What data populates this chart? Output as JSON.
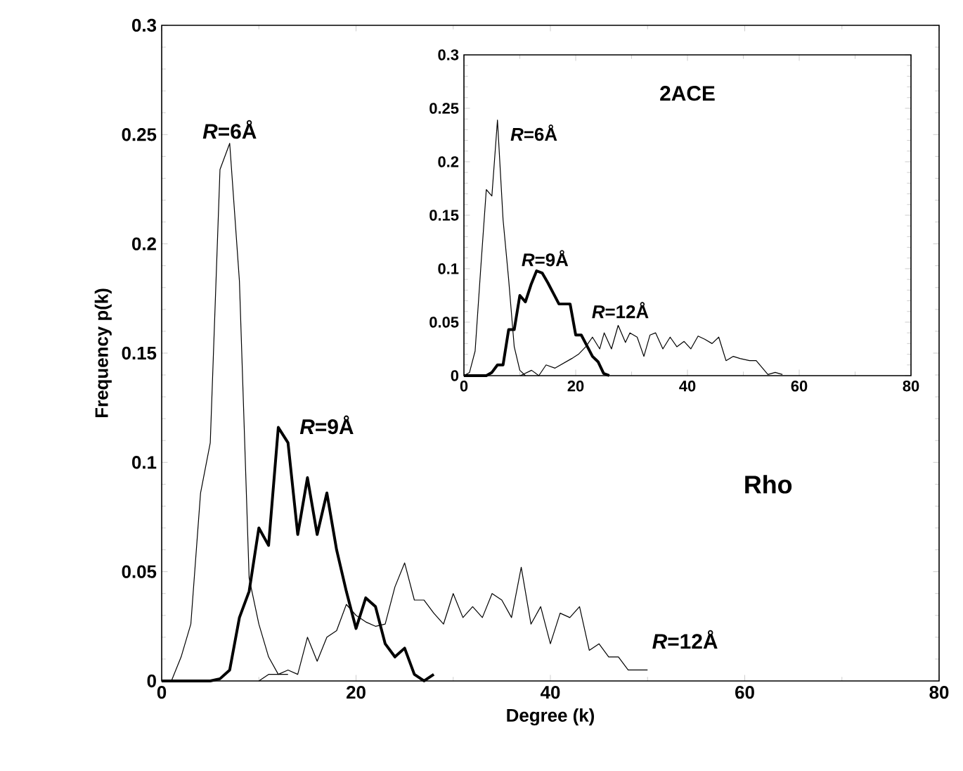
{
  "chart_data": [
    {
      "type": "line",
      "title": "Rho",
      "xlabel": "Degree (k)",
      "ylabel": "Frequency p(k)",
      "xlim": [
        0,
        80
      ],
      "ylim": [
        0,
        0.3
      ],
      "xticks": [
        0,
        20,
        40,
        60,
        80
      ],
      "yticks": [
        0,
        0.05,
        0.1,
        0.15,
        0.2,
        0.25,
        0.3
      ],
      "grid": false,
      "legend": false,
      "marker": "none",
      "line_style": "solid",
      "series": [
        {
          "name": "*R*=6Å",
          "color": "#000000",
          "x": [
            0,
            1,
            2,
            3,
            4,
            5,
            6,
            7,
            8,
            9,
            10,
            11,
            12,
            13
          ],
          "values": [
            0,
            0,
            0.011,
            0.026,
            0.086,
            0.109,
            0.234,
            0.246,
            0.183,
            0.047,
            0.026,
            0.011,
            0.003,
            0.003
          ]
        },
        {
          "name": "*R*=9Å",
          "color": "#000000",
          "x": [
            0,
            1,
            2,
            3,
            4,
            5,
            6,
            7,
            8,
            9,
            10,
            11,
            12,
            13,
            14,
            15,
            16,
            17,
            18,
            19,
            20,
            21,
            22,
            23,
            24,
            25,
            26,
            27,
            28
          ],
          "values": [
            0,
            0,
            0,
            0,
            0,
            0,
            0.001,
            0.005,
            0.029,
            0.041,
            0.07,
            0.062,
            0.116,
            0.109,
            0.067,
            0.093,
            0.067,
            0.086,
            0.06,
            0.041,
            0.024,
            0.038,
            0.034,
            0.017,
            0.011,
            0.015,
            0.003,
            0,
            0.003
          ]
        },
        {
          "name": "*R*=12Å",
          "color": "#000000",
          "x": [
            10,
            11,
            12,
            13,
            14,
            15,
            16,
            17,
            18,
            19,
            20,
            21,
            22,
            23,
            24,
            25,
            26,
            27,
            28,
            29,
            30,
            31,
            32,
            33,
            34,
            35,
            36,
            37,
            38,
            39,
            40,
            41,
            42,
            43,
            44,
            45,
            46,
            47,
            48,
            49,
            50
          ],
          "values": [
            0,
            0.003,
            0.003,
            0.005,
            0.003,
            0.02,
            0.009,
            0.02,
            0.023,
            0.035,
            0.03,
            0.027,
            0.025,
            0.026,
            0.043,
            0.054,
            0.037,
            0.037,
            0.031,
            0.026,
            0.04,
            0.029,
            0.034,
            0.029,
            0.04,
            0.037,
            0.029,
            0.052,
            0.026,
            0.034,
            0.017,
            0.031,
            0.029,
            0.034,
            0.014,
            0.017,
            0.011,
            0.011,
            0.005,
            0.005,
            0.005
          ]
        }
      ]
    },
    {
      "type": "line",
      "title": "2ACE",
      "xlim": [
        0,
        80
      ],
      "ylim": [
        0,
        0.3
      ],
      "xticks": [
        0,
        20,
        40,
        60,
        80
      ],
      "yticks": [
        0,
        0.05,
        0.1,
        0.15,
        0.2,
        0.25,
        0.3
      ],
      "grid": false,
      "legend": false,
      "marker": "none",
      "line_style": "solid",
      "series": [
        {
          "name": "*R*=6Å",
          "color": "#000000",
          "x": [
            0,
            1,
            2,
            3,
            4,
            5,
            6,
            7,
            8,
            9,
            10,
            11
          ],
          "values": [
            0,
            0.003,
            0.023,
            0.1,
            0.174,
            0.168,
            0.239,
            0.146,
            0.09,
            0.027,
            0.005,
            0
          ]
        },
        {
          "name": "*R*=9Å",
          "color": "#000000",
          "x": [
            0,
            1,
            2,
            3,
            4,
            5,
            6,
            7,
            8,
            9,
            10,
            11,
            12,
            13,
            14,
            15,
            16,
            17,
            18,
            19,
            20,
            21,
            22,
            23,
            24,
            25,
            26
          ],
          "values": [
            0,
            0,
            0,
            0,
            0,
            0.003,
            0.01,
            0.01,
            0.043,
            0.043,
            0.075,
            0.069,
            0.085,
            0.098,
            0.096,
            0.087,
            0.077,
            0.067,
            0.067,
            0.067,
            0.038,
            0.038,
            0.028,
            0.018,
            0.013,
            0.002,
            0
          ]
        },
        {
          "name": "*R*=12Å",
          "color": "#000000",
          "x": [
            10.1,
            12.1,
            13.4,
            14.7,
            16.3,
            19.3,
            20.5,
            21.8,
            23.0,
            24.3,
            25.1,
            26.4,
            27.6,
            28.9,
            29.7,
            31.0,
            32.2,
            33.3,
            34.3,
            35.6,
            36.9,
            38.1,
            39.4,
            40.6,
            41.9,
            43.1,
            44.4,
            45.6,
            46.9,
            48.2,
            49.4,
            51.1,
            52.3,
            54.4,
            55.7,
            57.0
          ],
          "values": [
            0,
            0.005,
            0,
            0.01,
            0.007,
            0.016,
            0.02,
            0.027,
            0.036,
            0.025,
            0.04,
            0.025,
            0.047,
            0.031,
            0.04,
            0.036,
            0.018,
            0.038,
            0.04,
            0.025,
            0.036,
            0.027,
            0.032,
            0.025,
            0.037,
            0.034,
            0.03,
            0.036,
            0.014,
            0.018,
            0.016,
            0.014,
            0.014,
            0.001,
            0.003,
            0.001
          ]
        }
      ]
    }
  ]
}
